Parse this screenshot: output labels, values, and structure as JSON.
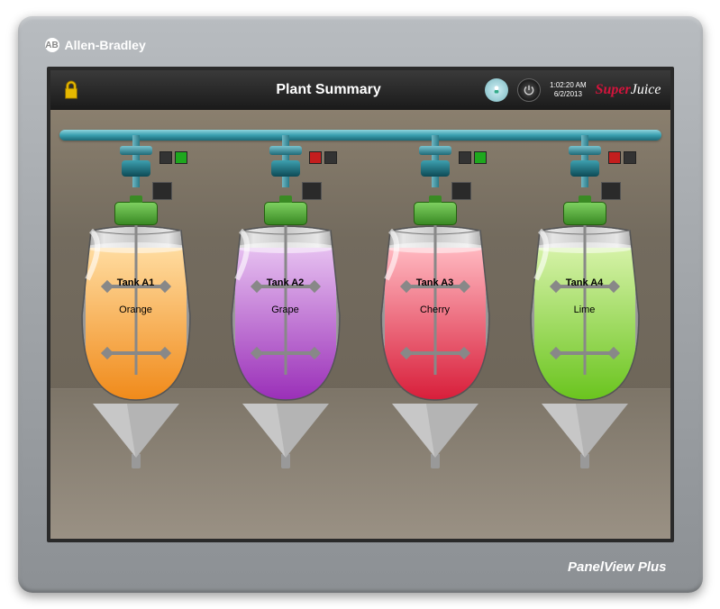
{
  "device": {
    "brand_top": "Allen-Bradley",
    "brand_bottom": "PanelView Plus"
  },
  "topbar": {
    "title": "Plant Summary",
    "time": "1:02:20 AM",
    "date": "6/2/2013",
    "brand_logo_1": "Super",
    "brand_logo_2": "Juice"
  },
  "colors": {
    "frame_bg": "#a0a4a8",
    "screen_bg": "#736b5e",
    "topbar_bg": "#1a1a1a",
    "pipe": "#3aa0b0",
    "motor": "#3a8a24",
    "lock": "#e6b800",
    "ind_red": "#c41e1e",
    "ind_green": "#1ea81e",
    "ind_off": "#333333",
    "tank_shell": "#c9c9c9"
  },
  "tanks": [
    {
      "id": "A1",
      "name": "Tank A1",
      "flavor": "Orange",
      "fill_color_top": "#ffdca0",
      "fill_color_bot": "#f08a1a",
      "fill_level": 0.9,
      "ind_left": "off",
      "ind_right": "green"
    },
    {
      "id": "A2",
      "name": "Tank A2",
      "flavor": "Grape",
      "fill_color_top": "#e6c0f0",
      "fill_color_bot": "#9a2fb8",
      "fill_level": 0.9,
      "ind_left": "red",
      "ind_right": "off"
    },
    {
      "id": "A3",
      "name": "Tank A3",
      "flavor": "Cherry",
      "fill_color_top": "#ffb8c0",
      "fill_color_bot": "#d81e3a",
      "fill_level": 0.9,
      "ind_left": "off",
      "ind_right": "green"
    },
    {
      "id": "A4",
      "name": "Tank A4",
      "flavor": "Lime",
      "fill_color_top": "#d6f2a8",
      "fill_color_bot": "#6ac41e",
      "fill_level": 0.9,
      "ind_left": "red",
      "ind_right": "off"
    }
  ]
}
